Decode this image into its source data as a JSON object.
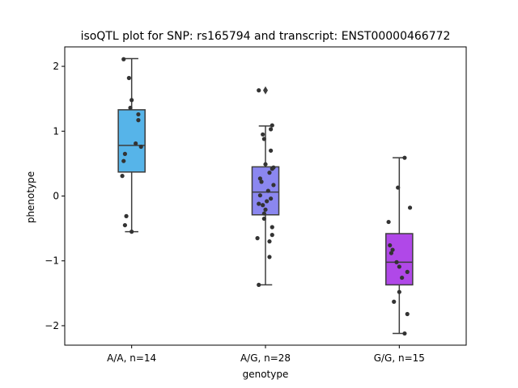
{
  "chart_data": {
    "type": "box",
    "title": "isoQTL plot for SNP: rs165794 and transcript: ENST00000466772",
    "xlabel": "genotype",
    "ylabel": "phenotype",
    "ylim": [
      -2.3,
      2.3
    ],
    "yticks": [
      2,
      1,
      0,
      -1,
      -2
    ],
    "ytick_labels": [
      "2",
      "1",
      "0",
      "−1",
      "−2"
    ],
    "grid": false,
    "categories": [
      "A/A, n=14",
      "A/G, n=28",
      "G/G, n=15"
    ],
    "boxes": [
      {
        "category": "A/A, n=14",
        "color": "#56b4e9",
        "q1": 0.37,
        "median": 0.78,
        "q3": 1.33,
        "whisker_low": -0.55,
        "whisker_high": 2.12,
        "outliers": []
      },
      {
        "category": "A/G, n=28",
        "color": "#8b87f0",
        "q1": -0.29,
        "median": 0.06,
        "q3": 0.45,
        "whisker_low": -1.37,
        "whisker_high": 1.08,
        "outliers": [
          1.63
        ]
      },
      {
        "category": "G/G, n=15",
        "color": "#b048e8",
        "q1": -1.37,
        "median": -1.02,
        "q3": -0.58,
        "whisker_low": -2.12,
        "whisker_high": 0.59,
        "outliers": []
      }
    ],
    "points": [
      {
        "category": "A/A, n=14",
        "x_offset": [
          -0.06,
          -0.02,
          0.0,
          -0.01,
          0.05,
          0.05,
          0.03,
          0.07,
          -0.05,
          -0.06,
          -0.07,
          -0.04,
          -0.05,
          0.0
        ],
        "y": [
          2.11,
          1.82,
          1.48,
          1.36,
          1.26,
          1.17,
          0.81,
          0.76,
          0.65,
          0.54,
          0.31,
          -0.31,
          -0.45,
          -0.55
        ]
      },
      {
        "category": "A/G, n=28",
        "x_offset": [
          -0.05,
          0.05,
          0.04,
          -0.02,
          -0.01,
          0.04,
          0.0,
          0.06,
          0.05,
          0.03,
          -0.04,
          -0.03,
          0.06,
          0.02,
          -0.04,
          0.04,
          0.01,
          -0.05,
          -0.02,
          0.0,
          -0.01,
          -0.01,
          0.05,
          0.05,
          -0.06,
          0.03,
          0.03,
          -0.05
        ],
        "y": [
          1.63,
          1.09,
          1.03,
          0.95,
          0.88,
          0.7,
          0.49,
          0.44,
          0.42,
          0.36,
          0.27,
          0.22,
          0.17,
          0.08,
          0.01,
          -0.04,
          -0.08,
          -0.12,
          -0.14,
          -0.21,
          -0.27,
          -0.35,
          -0.48,
          -0.6,
          -0.65,
          -0.7,
          -0.94,
          -1.37
        ]
      },
      {
        "category": "G/G, n=15",
        "x_offset": [
          0.04,
          -0.01,
          0.08,
          -0.08,
          -0.07,
          -0.05,
          -0.06,
          -0.02,
          0.0,
          0.06,
          0.02,
          0.0,
          -0.04,
          0.06,
          0.04
        ],
        "y": [
          0.59,
          0.13,
          -0.18,
          -0.4,
          -0.76,
          -0.83,
          -0.88,
          -1.02,
          -1.09,
          -1.17,
          -1.26,
          -1.48,
          -1.63,
          -1.82,
          -2.12
        ]
      }
    ]
  }
}
